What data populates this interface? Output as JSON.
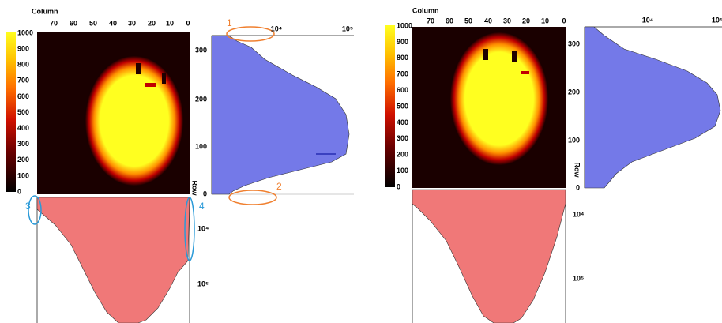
{
  "panels": [
    {
      "x_label": "Column",
      "column_ticks": [
        "70",
        "60",
        "50",
        "40",
        "30",
        "20",
        "10",
        "0"
      ],
      "colorbar_ticks": [
        "1000",
        "900",
        "800",
        "700",
        "600",
        "500",
        "400",
        "300",
        "200",
        "100",
        "0"
      ],
      "y_label": "Row",
      "row_ticks": [
        "300",
        "200",
        "100",
        "0"
      ],
      "log_ticks_top": [
        "10⁴",
        "10⁵"
      ],
      "log_ticks_bottom": [
        "10⁴",
        "10⁵"
      ],
      "annotations": [
        "1",
        "2",
        "3",
        "4"
      ]
    },
    {
      "x_label": "Column",
      "column_ticks": [
        "70",
        "60",
        "50",
        "40",
        "30",
        "20",
        "10",
        "0"
      ],
      "colorbar_ticks": [
        "1000",
        "900",
        "800",
        "700",
        "600",
        "500",
        "400",
        "300",
        "200",
        "100",
        "0"
      ],
      "y_label": "Row",
      "row_ticks": [
        "300",
        "200",
        "100",
        "0"
      ],
      "log_ticks_top": [
        "10⁴",
        "10⁵"
      ],
      "log_ticks_bottom": [
        "10⁴",
        "10⁵"
      ]
    }
  ]
}
